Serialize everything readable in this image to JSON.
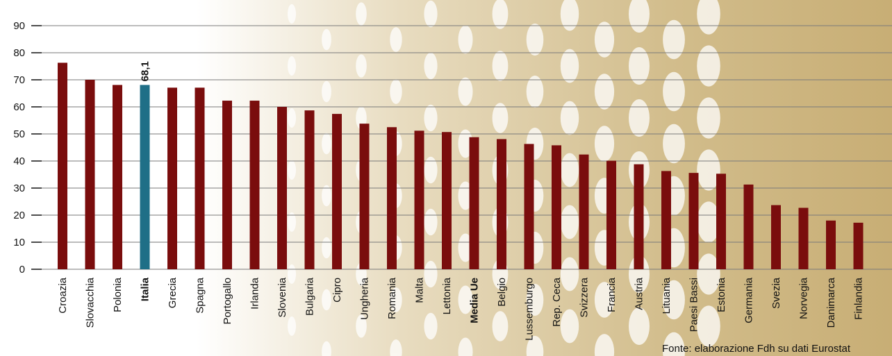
{
  "chart_data": {
    "type": "bar",
    "categories": [
      "Croazia",
      "Slovacchia",
      "Polonia",
      "Italia",
      "Grecia",
      "Spagna",
      "Portogallo",
      "Irlanda",
      "Slovenia",
      "Bulgaria",
      "Cipro",
      "Ungheria",
      "Romania",
      "Malta",
      "Lettonia",
      "Media Ue",
      "Belgio",
      "Lussemburgo",
      "Rep. Ceca",
      "Svizzera",
      "Francia",
      "Austria",
      "Lituania",
      "Paesi Bassi",
      "Estonia",
      "Germania",
      "Svezia",
      "Norvegia",
      "Danimarca",
      "Finlandia"
    ],
    "values": [
      76.3,
      70.0,
      68.1,
      68.1,
      67.1,
      67.1,
      62.3,
      62.3,
      60.0,
      58.7,
      57.4,
      53.8,
      52.5,
      51.2,
      50.7,
      48.8,
      48.1,
      46.3,
      45.8,
      42.4,
      40.1,
      38.8,
      36.3,
      35.6,
      35.3,
      31.3,
      23.7,
      22.7,
      18.0,
      17.2
    ],
    "highlight": {
      "category": "Italia",
      "label": "68,1"
    },
    "bold_categories": [
      "Italia",
      "Media Ue"
    ],
    "ylim": [
      0,
      90
    ],
    "yticks": [
      0,
      10,
      20,
      30,
      40,
      50,
      60,
      70,
      80,
      90
    ],
    "grid": true,
    "colors": {
      "bar": "#7a0d0d",
      "highlight": "#1f6f87",
      "grid": "#7a7a7a",
      "background_light": "#ffffff",
      "background_gold": "#c9b079"
    }
  },
  "source": "Fonte: elaborazione Fdh su dati Eurostat"
}
